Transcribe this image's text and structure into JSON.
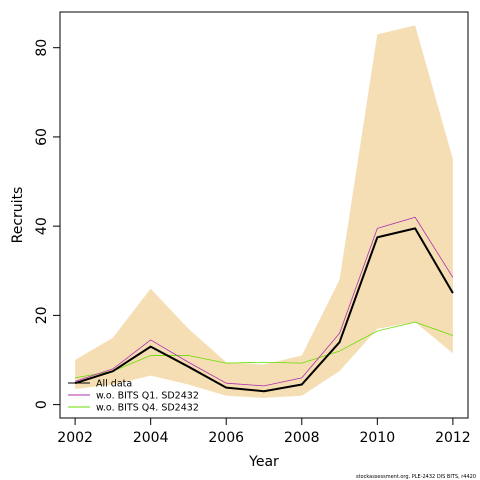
{
  "chart_data": {
    "type": "line",
    "xlabel": "Year",
    "ylabel": "Recruits",
    "xlim": [
      2001.6,
      2012.4
    ],
    "ylim": [
      -3,
      88
    ],
    "xticks": [
      2002,
      2004,
      2006,
      2008,
      2010,
      2012
    ],
    "yticks": [
      0,
      20,
      40,
      60,
      80
    ],
    "grid": false,
    "legend_position": "bottom-left",
    "footer": "stockassessment.org, PLE-2432 DIS BITS, r4420",
    "x": [
      2002,
      2003,
      2004,
      2005,
      2006,
      2007,
      2008,
      2009,
      2010,
      2011,
      2012
    ],
    "band": {
      "lower": [
        3.5,
        4.5,
        6.5,
        4.5,
        2.0,
        1.5,
        2.0,
        7.5,
        17.0,
        18.5,
        11.5
      ],
      "upper": [
        10.0,
        15.0,
        26.0,
        17.0,
        9.5,
        9.0,
        11.0,
        28.0,
        83.0,
        85.0,
        55.0
      ],
      "color": "#f5deb3"
    },
    "series": [
      {
        "name": "All data",
        "values": [
          4.8,
          7.5,
          13.0,
          8.5,
          3.8,
          3.0,
          4.5,
          14.0,
          37.5,
          39.5,
          25.0
        ],
        "color": "#000000",
        "width": 2
      },
      {
        "name": "w.o. BITS Q1. SD2432",
        "values": [
          5.2,
          8.0,
          14.5,
          9.5,
          4.8,
          4.2,
          6.0,
          16.0,
          39.5,
          42.0,
          28.5
        ],
        "color": "#b030b0",
        "width": 0.8
      },
      {
        "name": "w.o. BITS Q4. SD2432",
        "values": [
          6.0,
          7.5,
          11.0,
          11.0,
          9.3,
          9.5,
          9.3,
          12.0,
          16.5,
          18.5,
          15.5
        ],
        "color": "#66dd00",
        "width": 0.8
      }
    ]
  }
}
